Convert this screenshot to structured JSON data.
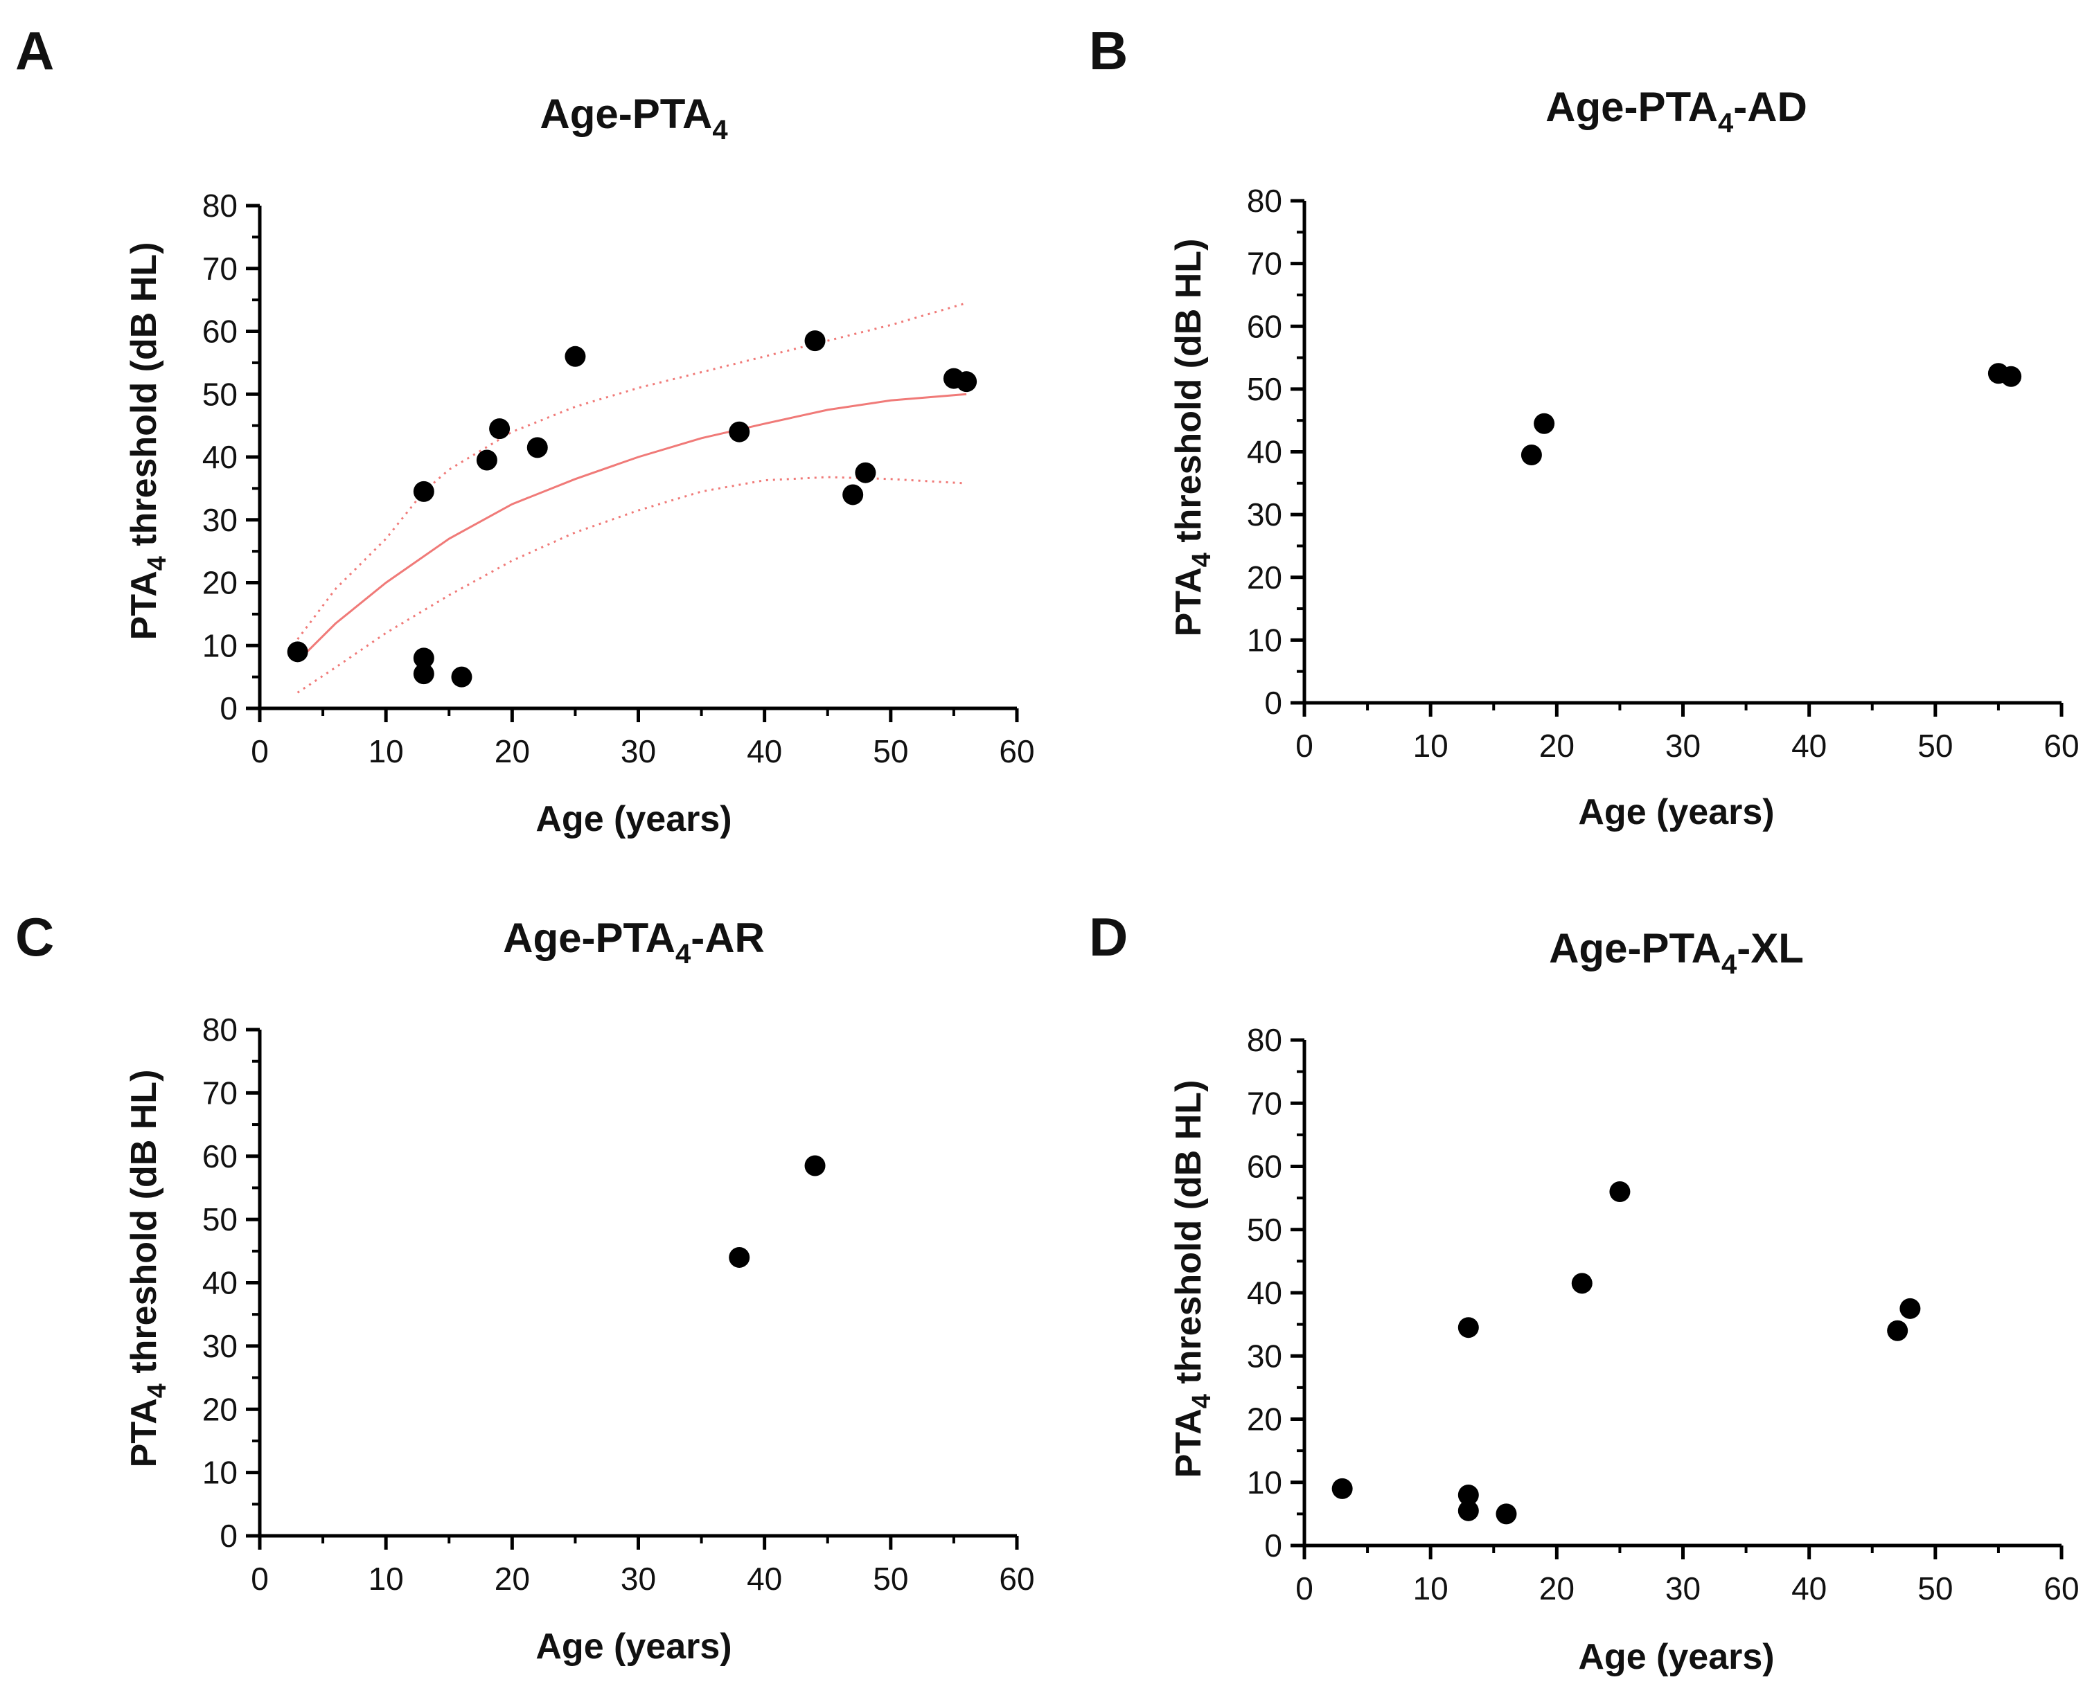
{
  "chart_data": [
    {
      "panel": "A",
      "type": "scatter",
      "title_main": "Age-PTA",
      "title_sub": "4",
      "title_suffix": "",
      "xlabel": "Age  (years)",
      "ylabel_main": "PTA",
      "ylabel_sub": "4",
      "ylabel_rest": " threshold (dB HL)",
      "xlim": [
        0,
        60
      ],
      "ylim": [
        0,
        80
      ],
      "xticks": [
        0,
        10,
        20,
        30,
        40,
        50,
        60
      ],
      "yticks": [
        0,
        10,
        20,
        30,
        40,
        50,
        60,
        70,
        80
      ],
      "points": [
        {
          "x": 3,
          "y": 9
        },
        {
          "x": 13,
          "y": 34.5
        },
        {
          "x": 13,
          "y": 8
        },
        {
          "x": 13,
          "y": 5.5
        },
        {
          "x": 16,
          "y": 5
        },
        {
          "x": 18,
          "y": 39.5
        },
        {
          "x": 19,
          "y": 44.5
        },
        {
          "x": 22,
          "y": 41.5
        },
        {
          "x": 25,
          "y": 56
        },
        {
          "x": 38,
          "y": 44
        },
        {
          "x": 44,
          "y": 58.5
        },
        {
          "x": 47,
          "y": 34
        },
        {
          "x": 48,
          "y": 37.5
        },
        {
          "x": 55,
          "y": 52.5
        },
        {
          "x": 56,
          "y": 52
        }
      ],
      "fit": {
        "color": "#f07a78",
        "curve": [
          [
            3,
            7.5
          ],
          [
            6,
            13.5
          ],
          [
            10,
            20
          ],
          [
            15,
            27
          ],
          [
            20,
            32.5
          ],
          [
            25,
            36.5
          ],
          [
            30,
            40
          ],
          [
            35,
            43
          ],
          [
            40,
            45.3
          ],
          [
            45,
            47.5
          ],
          [
            50,
            49
          ],
          [
            56,
            50
          ]
        ],
        "upper": [
          [
            3,
            11
          ],
          [
            6,
            19
          ],
          [
            10,
            27
          ],
          [
            13,
            34.5
          ],
          [
            15,
            38
          ],
          [
            20,
            44
          ],
          [
            25,
            48
          ],
          [
            30,
            51
          ],
          [
            35,
            53.5
          ],
          [
            40,
            56
          ],
          [
            45,
            58.5
          ],
          [
            50,
            61
          ],
          [
            56,
            64.5
          ]
        ],
        "lower": [
          [
            3,
            2.5
          ],
          [
            6,
            6.5
          ],
          [
            10,
            12
          ],
          [
            15,
            18
          ],
          [
            20,
            23.5
          ],
          [
            25,
            28
          ],
          [
            30,
            31.5
          ],
          [
            35,
            34.5
          ],
          [
            40,
            36.3
          ],
          [
            45,
            36.8
          ],
          [
            50,
            36.5
          ],
          [
            56,
            35.8
          ]
        ]
      }
    },
    {
      "panel": "B",
      "type": "scatter",
      "title_main": "Age-PTA",
      "title_sub": "4",
      "title_suffix": "-AD",
      "xlabel": "Age (years)",
      "ylabel_main": "PTA",
      "ylabel_sub": "4",
      "ylabel_rest": " threshold (dB HL)",
      "xlim": [
        0,
        60
      ],
      "ylim": [
        0,
        80
      ],
      "xticks": [
        0,
        10,
        20,
        30,
        40,
        50,
        60
      ],
      "yticks": [
        0,
        10,
        20,
        30,
        40,
        50,
        60,
        70,
        80
      ],
      "points": [
        {
          "x": 18,
          "y": 39.5
        },
        {
          "x": 19,
          "y": 44.5
        },
        {
          "x": 55,
          "y": 52.5
        },
        {
          "x": 56,
          "y": 52
        }
      ]
    },
    {
      "panel": "C",
      "type": "scatter",
      "title_main": "Age-PTA",
      "title_sub": "4",
      "title_suffix": "-AR",
      "xlabel": "Age (years)",
      "ylabel_main": "PTA",
      "ylabel_sub": "4",
      "ylabel_rest": " threshold (dB HL)",
      "xlim": [
        0,
        60
      ],
      "ylim": [
        0,
        80
      ],
      "xticks": [
        0,
        10,
        20,
        30,
        40,
        50,
        60
      ],
      "yticks": [
        0,
        10,
        20,
        30,
        40,
        50,
        60,
        70,
        80
      ],
      "points": [
        {
          "x": 38,
          "y": 44
        },
        {
          "x": 44,
          "y": 58.5
        }
      ]
    },
    {
      "panel": "D",
      "type": "scatter",
      "title_main": "Age-PTA",
      "title_sub": "4",
      "title_suffix": "-XL",
      "xlabel": "Age (years)",
      "ylabel_main": "PTA",
      "ylabel_sub": "4",
      "ylabel_rest": " threshold (dB HL)",
      "xlim": [
        0,
        60
      ],
      "ylim": [
        0,
        80
      ],
      "xticks": [
        0,
        10,
        20,
        30,
        40,
        50,
        60
      ],
      "yticks": [
        0,
        10,
        20,
        30,
        40,
        50,
        60,
        70,
        80
      ],
      "points": [
        {
          "x": 3,
          "y": 9
        },
        {
          "x": 13,
          "y": 34.5
        },
        {
          "x": 13,
          "y": 8
        },
        {
          "x": 13,
          "y": 5.5
        },
        {
          "x": 16,
          "y": 5
        },
        {
          "x": 22,
          "y": 41.5
        },
        {
          "x": 25,
          "y": 56
        },
        {
          "x": 47,
          "y": 34
        },
        {
          "x": 48,
          "y": 37.5
        }
      ]
    }
  ]
}
